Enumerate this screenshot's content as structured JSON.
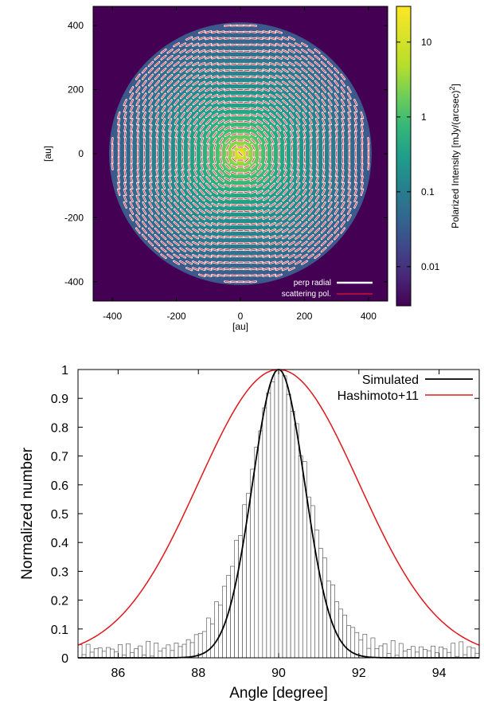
{
  "chart_data": [
    {
      "type": "heatmap",
      "xlabel": "[au]",
      "ylabel": "[au]",
      "xlim": [
        -460,
        460
      ],
      "ylim": [
        -460,
        460
      ],
      "x_ticks": [
        "-400",
        "-200",
        "0",
        "200",
        "400"
      ],
      "y_ticks": [
        "400",
        "200",
        "0",
        "-200",
        "-400"
      ],
      "disk_radius": 410,
      "colorbar": {
        "label": "Polarized Intensity [mJy/(arcsec)",
        "label_sup": "2",
        "label_end": "]",
        "scale": "log",
        "range": [
          0.003,
          30
        ],
        "tick_labels": [
          "10",
          "1",
          "0.1",
          "0.01"
        ],
        "tick_values": [
          10,
          1,
          0.1,
          0.01
        ]
      },
      "vector_spacing": 20,
      "legend": [
        {
          "label": "perp radial",
          "color": "#ffffff"
        },
        {
          "label": "scattering pol.",
          "color": "#e0182d"
        }
      ]
    },
    {
      "type": "bar",
      "xlabel": "Angle [degree]",
      "ylabel": "Normalized number",
      "xlim": [
        85,
        95
      ],
      "ylim": [
        0,
        1
      ],
      "x_ticks": [
        "86",
        "88",
        "90",
        "92",
        "94"
      ],
      "y_ticks": [
        "0",
        "0.1",
        "0.2",
        "0.3",
        "0.4",
        "0.5",
        "0.6",
        "0.7",
        "0.8",
        "0.9",
        "1"
      ],
      "histogram_bin_width": 0.1,
      "series": [
        {
          "name": "Simulated",
          "color": "#000000",
          "center": 90,
          "sigma": 0.65
        },
        {
          "name": "Hashimoto+11",
          "color": "#e0181c",
          "center": 90,
          "sigma": 2.0
        }
      ]
    }
  ]
}
